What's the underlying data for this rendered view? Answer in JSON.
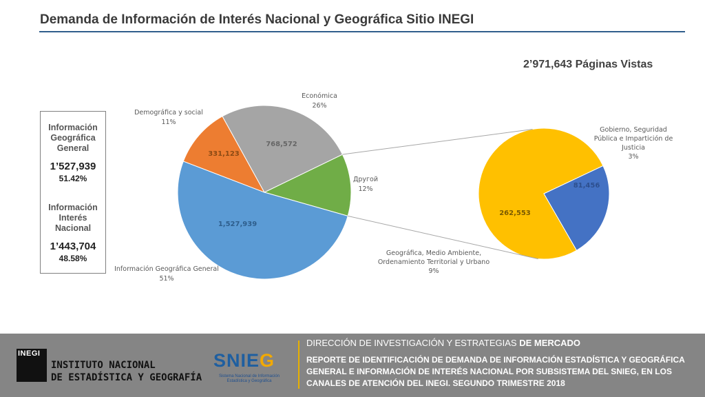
{
  "header": {
    "title": "Demanda de Información de Interés Nacional y Geográfica Sitio INEGI",
    "total_views": "2’971,643 Páginas Vistas"
  },
  "summary": [
    {
      "label": "Información Geográfica General",
      "value": "1’527,939",
      "percent": "51.42%"
    },
    {
      "label": "Información Interés Nacional",
      "value": "1’443,704",
      "percent": "48.58%"
    }
  ],
  "chart_data": [
    {
      "type": "pie",
      "slices": [
        {
          "name": "Información Geográfica General",
          "value": 1527939,
          "value_label": "1,527,939",
          "percent_label": "51%",
          "color": "#5b9bd5"
        },
        {
          "name": "Demográfica y social",
          "value": 331123,
          "value_label": "331,123",
          "percent_label": "11%",
          "color": "#ed7d31"
        },
        {
          "name": "Económica",
          "value": 768572,
          "value_label": "768,572",
          "percent_label": "26%",
          "color": "#a5a5a5"
        },
        {
          "name": "Другой",
          "value": 344009,
          "value_label": "",
          "percent_label": "12%",
          "color": "#70ad47"
        }
      ]
    },
    {
      "type": "pie",
      "slices": [
        {
          "name": "Geográfica, Medio Ambiente, Ordenamiento Territorial y Urbano",
          "value": 262553,
          "value_label": "262,553",
          "percent_label": "9%",
          "color": "#ffc000"
        },
        {
          "name": "Gobierno, Seguridad Pública e Impartición de Justicia",
          "value": 81456,
          "value_label": "81,456",
          "percent_label": "3%",
          "color": "#4472c4"
        }
      ]
    }
  ],
  "footer": {
    "logo_text": "INEGI",
    "institute_line1": "INSTITUTO NACIONAL",
    "institute_line2": "DE ESTADÍSTICA Y GEOGRAFÍA",
    "snieg_main": "SNIE",
    "snieg_g": "G",
    "snieg_sub": "Sistema Nacional de Información Estadística y Geográfica",
    "direction_a": "DIRECCIÓN DE INVESTIGACIÓN Y ESTRATEGIAS",
    "direction_b": "DE MERCADO",
    "report": "REPORTE DE IDENTIFICACIÓN DE DEMANDA DE INFORMACIÓN ESTADÍSTICA Y GEOGRÁFICA GENERAL E INFORMACIÓN DE INTERÉS NACIONAL POR SUBSISTEMA DEL SNIEG, EN LOS CANALES DE ATENCIÓN DEL INEGI. SEGUNDO TRIMESTRE 2018"
  }
}
